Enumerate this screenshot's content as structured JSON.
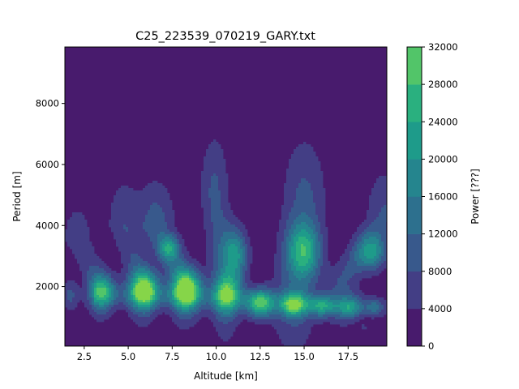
{
  "chart_data": {
    "type": "heatmap",
    "subtype": "filled-contour",
    "title": "C25_223539_070219_GARY.txt",
    "xlabel": "Altitude [km]",
    "ylabel": "Period [m]",
    "xlim": [
      1.4,
      19.7
    ],
    "ylim": [
      50,
      9850
    ],
    "x_ticks": [
      "2.5",
      "5.0",
      "7.5",
      "10.0",
      "12.5",
      "15.0",
      "17.5"
    ],
    "y_ticks": [
      "2000",
      "4000",
      "6000",
      "8000"
    ],
    "colorbar": {
      "label": "Power [???]",
      "levels": [
        0,
        4000,
        8000,
        12000,
        16000,
        20000,
        24000,
        28000,
        32000
      ],
      "tick_labels": [
        "0",
        "4000",
        "8000",
        "12000",
        "16000",
        "20000",
        "24000",
        "28000",
        "32000"
      ],
      "colors": [
        "#481b6d",
        "#433e85",
        "#38598c",
        "#2d708e",
        "#25858e",
        "#1e9b8a",
        "#2ab07f",
        "#52c569",
        "#86d549",
        "#c2df23"
      ]
    },
    "background_level_color": "#481b6d",
    "features": [
      {
        "kind": "blob",
        "x": 1.7,
        "y": 1700,
        "sx": 0.35,
        "sy": 380,
        "peak": 9000
      },
      {
        "kind": "blob",
        "x": 3.5,
        "y": 1850,
        "sx": 0.55,
        "sy": 420,
        "peak": 20000
      },
      {
        "kind": "blob",
        "x": 5.9,
        "y": 1900,
        "sx": 0.6,
        "sy": 440,
        "peak": 31000
      },
      {
        "kind": "blob",
        "x": 8.3,
        "y": 1900,
        "sx": 0.6,
        "sy": 440,
        "peak": 31000
      },
      {
        "kind": "blob",
        "x": 10.6,
        "y": 1750,
        "sx": 0.55,
        "sy": 430,
        "peak": 23000
      },
      {
        "kind": "blob",
        "x": 12.5,
        "y": 1450,
        "sx": 0.55,
        "sy": 330,
        "peak": 26000
      },
      {
        "kind": "blob",
        "x": 14.4,
        "y": 1400,
        "sx": 0.5,
        "sy": 260,
        "peak": 24000
      },
      {
        "kind": "blob",
        "x": 16.0,
        "y": 1350,
        "sx": 0.55,
        "sy": 240,
        "peak": 17000
      },
      {
        "kind": "blob",
        "x": 17.6,
        "y": 1300,
        "sx": 0.5,
        "sy": 220,
        "peak": 14000
      },
      {
        "kind": "blob",
        "x": 19.0,
        "y": 1300,
        "sx": 0.35,
        "sy": 200,
        "peak": 9000
      },
      {
        "kind": "blob",
        "x": 18.4,
        "y": 680,
        "sx": 0.12,
        "sy": 60,
        "peak": 5000
      },
      {
        "kind": "plume",
        "x0": 3.4,
        "y0": 2000,
        "x1": 2.1,
        "y1": 3550,
        "w0": 0.5,
        "w1": 0.7,
        "len": 900,
        "peak": 6500
      },
      {
        "kind": "plume",
        "x0": 5.8,
        "y0": 2100,
        "x1": 4.7,
        "y1": 4000,
        "w0": 0.55,
        "w1": 0.65,
        "len": 1100,
        "peak": 7500
      },
      {
        "kind": "plume",
        "x0": 8.2,
        "y0": 2200,
        "x1": 6.6,
        "y1": 3900,
        "w0": 0.6,
        "w1": 0.75,
        "len": 1100,
        "peak": 10500
      },
      {
        "kind": "blob",
        "x": 7.3,
        "y": 3250,
        "sx": 0.4,
        "sy": 280,
        "peak": 15000
      },
      {
        "kind": "plume",
        "x0": 10.5,
        "y0": 2000,
        "x1": 9.9,
        "y1": 5000,
        "w0": 0.6,
        "w1": 0.6,
        "len": 1400,
        "peak": 9000
      },
      {
        "kind": "blob",
        "x": 11.1,
        "y": 3050,
        "sx": 0.5,
        "sy": 600,
        "peak": 19000
      },
      {
        "kind": "plume",
        "x0": 14.4,
        "y0": 1700,
        "x1": 15.0,
        "y1": 4800,
        "w0": 0.9,
        "w1": 0.9,
        "len": 1500,
        "peak": 9000
      },
      {
        "kind": "blob",
        "x": 15.0,
        "y": 3150,
        "sx": 0.65,
        "sy": 650,
        "peak": 20500
      },
      {
        "kind": "plume",
        "x0": 17.2,
        "y0": 2200,
        "x1": 19.6,
        "y1": 4300,
        "w0": 0.7,
        "w1": 0.8,
        "len": 1100,
        "peak": 8500
      },
      {
        "kind": "blob",
        "x": 18.9,
        "y": 3100,
        "sx": 0.6,
        "sy": 420,
        "peak": 16500
      },
      {
        "kind": "ridge",
        "x0": 3.0,
        "x1": 19.7,
        "y0": 1750,
        "y1": 1350,
        "sy": 260,
        "peak": 5000
      }
    ]
  }
}
